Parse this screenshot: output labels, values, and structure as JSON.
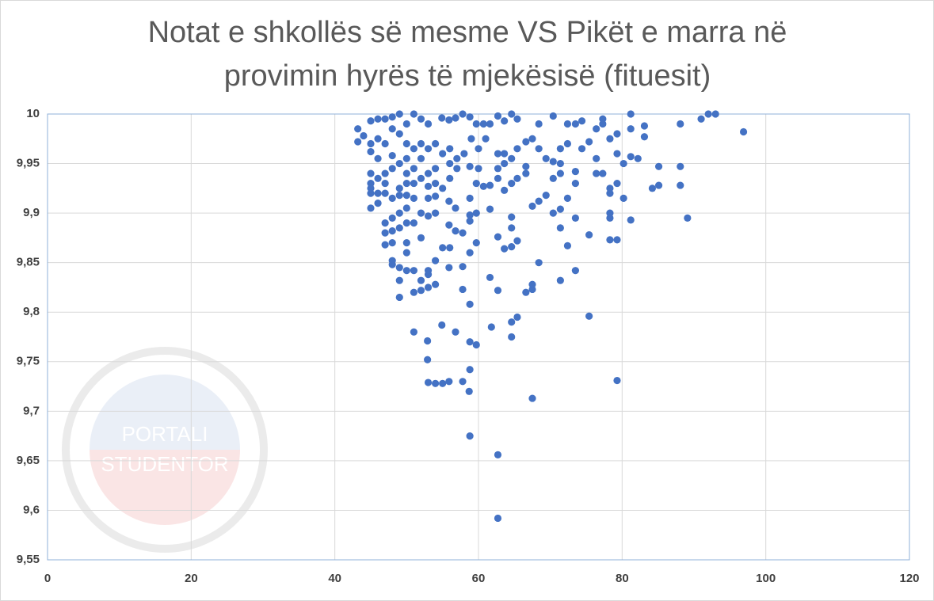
{
  "chart_data": {
    "type": "scatter",
    "title": "Notat e shkollës së mesme VS Pikët e marra në provimin hyrës të mjekësisë (fituesit)",
    "watermark": [
      "PORTALI",
      "STUDENTOR"
    ],
    "color": "#4472c4",
    "grid": true,
    "xlim": [
      0,
      120
    ],
    "xticks": [
      0,
      20,
      40,
      60,
      80,
      100,
      120
    ],
    "ylim": [
      9.55,
      10
    ],
    "yticks": [
      {
        "value": 9.55,
        "label": "9,55"
      },
      {
        "value": 9.6,
        "label": "9,6"
      },
      {
        "value": 9.65,
        "label": "9,65"
      },
      {
        "value": 9.7,
        "label": "9,7"
      },
      {
        "value": 9.75,
        "label": "9,75"
      },
      {
        "value": 9.8,
        "label": "9,8"
      },
      {
        "value": 9.85,
        "label": "9,85"
      },
      {
        "value": 9.9,
        "label": "9,9"
      },
      {
        "value": 9.95,
        "label": "9,95"
      },
      10
    ],
    "x": [
      62.7,
      62.7,
      58.8,
      67.5,
      58.7,
      79.3,
      58.8,
      52.9,
      53,
      54,
      55,
      55.9,
      57.8,
      52.9,
      58.8,
      59.7,
      51,
      54.9,
      56.8,
      61.8,
      64.6,
      64.6,
      65.4,
      75.4,
      58.8,
      62.7,
      57.8,
      61.6,
      66.6,
      67.5,
      67.5,
      71.4,
      73.5,
      68.4,
      49,
      51,
      52,
      53,
      54,
      52,
      53,
      53,
      50,
      51,
      49,
      48,
      48,
      49,
      54,
      55.9,
      57.8,
      58.8,
      59.7,
      55,
      52,
      50,
      50,
      47,
      48,
      56,
      62.7,
      63.6,
      64.6,
      65.4,
      72.4,
      75.4,
      78.3,
      79.3,
      81.2,
      89.1,
      78.3,
      78.3,
      73.5,
      71.4,
      70.4,
      71.4,
      72.4,
      69.4,
      68.4,
      67.5,
      64.6,
      64.6,
      61.6,
      59.7,
      58.8,
      58.8,
      57.8,
      56.8,
      55.9,
      54,
      53,
      52,
      51,
      50,
      49,
      48,
      47,
      47,
      48,
      49,
      50,
      46,
      45,
      45,
      46,
      47,
      48,
      49,
      50,
      51,
      53,
      54,
      55.9,
      56.8,
      58.8,
      59.7,
      60.7,
      61.6,
      63.6,
      64.6,
      65.4,
      62.7,
      66.6,
      66.6,
      70.4,
      71.4,
      71.4,
      73.5,
      73.5,
      76.4,
      77.3,
      78.3,
      78.3,
      79.3,
      80.2,
      84.2,
      85.1,
      88.1,
      85.1,
      88.1,
      80.2,
      81.2,
      82.2,
      79.3,
      78.3,
      79.3,
      81.2,
      83.1,
      83.1,
      88.1,
      91,
      92,
      93,
      96.9,
      81.2,
      77.3,
      77.3,
      76.4,
      74.4,
      73.5,
      72.4,
      70.4,
      68.4,
      65.4,
      64.6,
      63.6,
      62.7,
      61.6,
      60.7,
      59.7,
      58.8,
      57.8,
      56.8,
      55.9,
      54.9,
      53,
      52,
      51,
      50,
      49,
      48,
      47,
      46,
      45,
      43.2,
      43.2,
      44,
      45,
      45,
      46,
      47,
      48,
      49,
      50,
      51,
      52,
      53,
      54,
      55,
      56,
      57,
      58,
      59,
      60,
      61,
      62.7,
      63.6,
      64.6,
      65.4,
      66.6,
      67.5,
      68.4,
      69.4,
      70.4,
      71.4,
      72.4,
      74.4,
      75.4,
      76.4,
      45,
      45,
      45,
      46,
      47,
      48,
      49,
      50,
      51,
      52,
      53,
      54,
      55,
      56,
      57,
      58.8,
      60,
      62.7,
      63.6,
      50,
      48,
      46,
      52,
      54,
      56,
      49,
      50,
      51,
      53,
      47
    ],
    "values": [
      9.592,
      9.656,
      9.675,
      9.713,
      9.72,
      9.731,
      9.742,
      9.752,
      9.729,
      9.728,
      9.728,
      9.73,
      9.73,
      9.771,
      9.77,
      9.767,
      9.78,
      9.787,
      9.78,
      9.785,
      9.775,
      9.79,
      9.795,
      9.796,
      9.808,
      9.822,
      9.823,
      9.835,
      9.82,
      9.823,
      9.828,
      9.832,
      9.842,
      9.85,
      9.815,
      9.82,
      9.822,
      9.825,
      9.828,
      9.832,
      9.838,
      9.842,
      9.842,
      9.842,
      9.845,
      9.848,
      9.852,
      9.832,
      9.852,
      9.845,
      9.846,
      9.86,
      9.87,
      9.865,
      9.875,
      9.86,
      9.87,
      9.868,
      9.87,
      9.865,
      9.876,
      9.864,
      9.866,
      9.872,
      9.867,
      9.878,
      9.873,
      9.873,
      9.893,
      9.895,
      9.895,
      9.9,
      9.895,
      9.885,
      9.9,
      9.904,
      9.915,
      9.918,
      9.912,
      9.907,
      9.896,
      9.885,
      9.904,
      9.9,
      9.892,
      9.898,
      9.88,
      9.882,
      9.888,
      9.9,
      9.897,
      9.9,
      9.89,
      9.89,
      9.885,
      9.882,
      9.88,
      9.89,
      9.895,
      9.9,
      9.905,
      9.91,
      9.905,
      9.92,
      9.92,
      9.92,
      9.915,
      9.918,
      9.918,
      9.915,
      9.915,
      9.917,
      9.912,
      9.905,
      9.915,
      9.93,
      9.927,
      9.928,
      9.923,
      9.93,
      9.935,
      9.935,
      9.94,
      9.947,
      9.935,
      9.94,
      9.95,
      9.93,
      9.942,
      9.94,
      9.94,
      9.92,
      9.925,
      9.93,
      9.915,
      9.925,
      9.928,
      9.928,
      9.947,
      9.947,
      9.95,
      9.957,
      9.955,
      9.96,
      9.975,
      9.98,
      9.985,
      9.977,
      9.988,
      9.99,
      9.995,
      10,
      10,
      9.982,
      10,
      9.995,
      9.99,
      9.985,
      9.993,
      9.99,
      9.99,
      9.998,
      9.99,
      9.995,
      10,
      9.993,
      9.998,
      9.99,
      9.99,
      9.99,
      9.997,
      10,
      9.996,
      9.994,
      9.996,
      9.99,
      9.995,
      10,
      9.99,
      10,
      9.997,
      9.995,
      9.995,
      9.993,
      9.985,
      9.972,
      9.978,
      9.97,
      9.962,
      9.975,
      9.97,
      9.985,
      9.98,
      9.97,
      9.965,
      9.97,
      9.965,
      9.97,
      9.96,
      9.965,
      9.955,
      9.96,
      9.975,
      9.965,
      9.975,
      9.96,
      9.96,
      9.955,
      9.965,
      9.972,
      9.975,
      9.965,
      9.955,
      9.952,
      9.965,
      9.97,
      9.965,
      9.972,
      9.955,
      9.94,
      9.93,
      9.925,
      9.935,
      9.94,
      9.945,
      9.95,
      9.94,
      9.945,
      9.935,
      9.94,
      9.93,
      9.925,
      9.935,
      9.945,
      9.947,
      9.945,
      9.945,
      9.95,
      9.955,
      9.958,
      9.955,
      9.955,
      9.945,
      9.95,
      9.925,
      9.93,
      9.93,
      9.927,
      9.93
    ]
  }
}
